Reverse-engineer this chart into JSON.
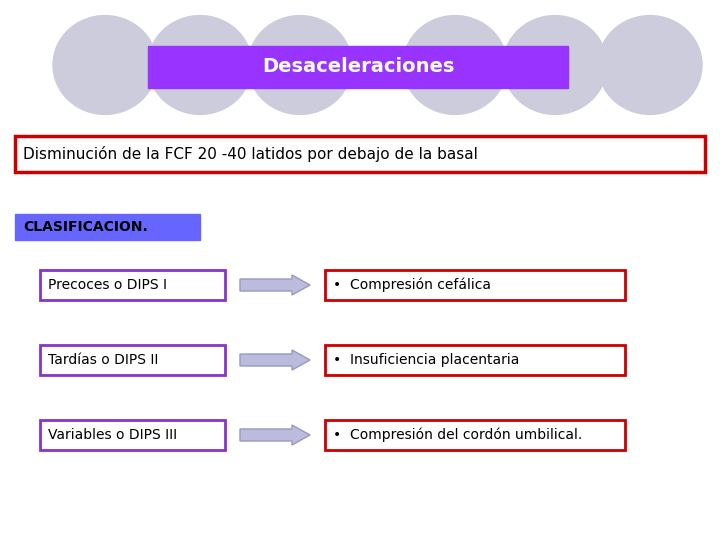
{
  "background_color": "#ffffff",
  "title": "Desaceleraciones",
  "title_bg": "#9933ff",
  "title_text_color": "#ffffff",
  "subtitle_text": "Disminución de la FCF 20 -40 latidos por debajo de la basal",
  "subtitle_box_color": "#cc0000",
  "clasificacion_text": "CLASIFICACION.",
  "clasificacion_bg": "#6666ff",
  "clasificacion_text_color": "#000000",
  "circles_color": "#ccccdd",
  "circles_edge": "#ccccdd",
  "left_boxes": [
    "Precoces o DIPS I",
    "Tardías o DIPS II",
    "Variables o DIPS III"
  ],
  "left_box_border": "#8833cc",
  "right_boxes": [
    "•  Compresión cefálica",
    "•  Insuficiencia placentaria",
    "•  Compresión del cordón umbilical."
  ],
  "right_box_border": "#cc0000",
  "box_text_color": "#000000",
  "arrow_facecolor": "#bbbbdd",
  "arrow_edgecolor": "#9999bb"
}
